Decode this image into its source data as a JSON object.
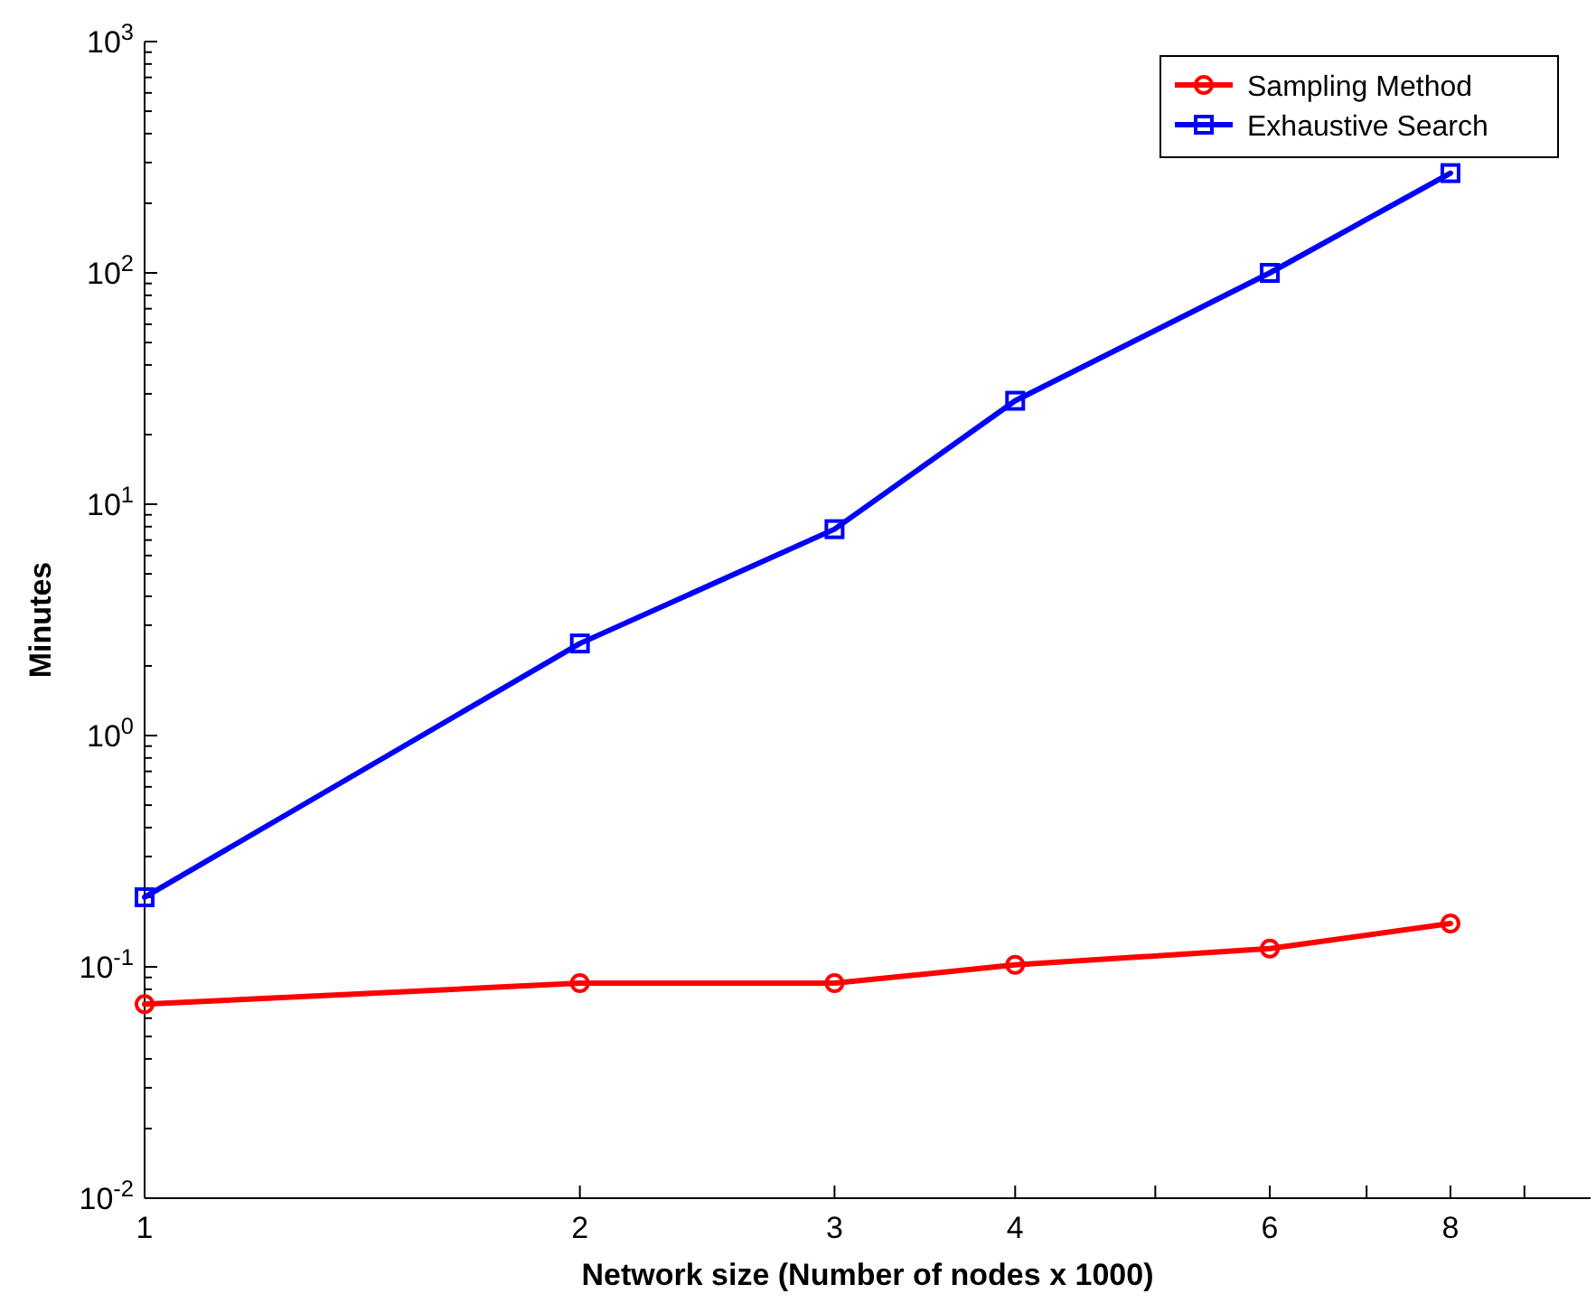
{
  "chart_data": {
    "type": "line",
    "xlabel": "Network size (Number of nodes x 1000)",
    "ylabel": "Minutes",
    "log": "xy",
    "xlim": [
      1,
      10
    ],
    "ylim": [
      0.01,
      1000
    ],
    "xticks": [
      1,
      2,
      3,
      4,
      {
        "value": 5,
        "label": null
      },
      6,
      {
        "value": 7,
        "label": null
      },
      8,
      {
        "value": 9,
        "label": null
      }
    ],
    "yticks": [
      {
        "value": 0.01,
        "label": "10$^{-2}$"
      },
      {
        "value": 0.02,
        "label": null
      },
      {
        "value": 0.03,
        "label": null
      },
      {
        "value": 0.04,
        "label": null
      },
      {
        "value": 0.05,
        "label": null
      },
      {
        "value": 0.06,
        "label": null
      },
      {
        "value": 0.07,
        "label": null
      },
      {
        "value": 0.08,
        "label": null
      },
      {
        "value": 0.09,
        "label": null
      },
      {
        "value": 0.1,
        "label": "10$^{-1}$"
      },
      {
        "value": 0.2,
        "label": null
      },
      {
        "value": 0.3,
        "label": null
      },
      {
        "value": 0.4,
        "label": null
      },
      {
        "value": 0.5,
        "label": null
      },
      {
        "value": 0.6,
        "label": null
      },
      {
        "value": 0.7,
        "label": null
      },
      {
        "value": 0.8,
        "label": null
      },
      {
        "value": 0.9,
        "label": null
      },
      {
        "value": 1,
        "label": "10$^{0}$"
      },
      {
        "value": 2,
        "label": null
      },
      {
        "value": 3,
        "label": null
      },
      {
        "value": 4,
        "label": null
      },
      {
        "value": 5,
        "label": null
      },
      {
        "value": 6,
        "label": null
      },
      {
        "value": 7,
        "label": null
      },
      {
        "value": 8,
        "label": null
      },
      {
        "value": 9,
        "label": null
      },
      {
        "value": 10,
        "label": "10$^{1}$"
      },
      {
        "value": 20,
        "label": null
      },
      {
        "value": 30,
        "label": null
      },
      {
        "value": 40,
        "label": null
      },
      {
        "value": 50,
        "label": null
      },
      {
        "value": 60,
        "label": null
      },
      {
        "value": 70,
        "label": null
      },
      {
        "value": 80,
        "label": null
      },
      {
        "value": 90,
        "label": null
      },
      {
        "value": 100,
        "label": "10$^{2}$"
      },
      {
        "value": 200,
        "label": null
      },
      {
        "value": 300,
        "label": null
      },
      {
        "value": 400,
        "label": null
      },
      {
        "value": 500,
        "label": null
      },
      {
        "value": 600,
        "label": null
      },
      {
        "value": 700,
        "label": null
      },
      {
        "value": 800,
        "label": null
      },
      {
        "value": 900,
        "label": null
      },
      {
        "value": 1000,
        "label": "10$^{3}$"
      }
    ],
    "x": [
      1,
      2,
      3,
      4,
      6,
      8
    ],
    "series": [
      {
        "name": "Sampling Method",
        "color": "#ff0000",
        "marker": "circle",
        "values": [
          0.069,
          0.085,
          0.085,
          0.102,
          0.12,
          0.154
        ]
      },
      {
        "name": "Exhaustive Search",
        "color": "#0000ff",
        "marker": "square",
        "values": [
          0.2,
          2.5,
          7.8,
          28,
          100,
          270
        ]
      }
    ],
    "legend": "top right",
    "grid": false,
    "line_style": "solid"
  }
}
